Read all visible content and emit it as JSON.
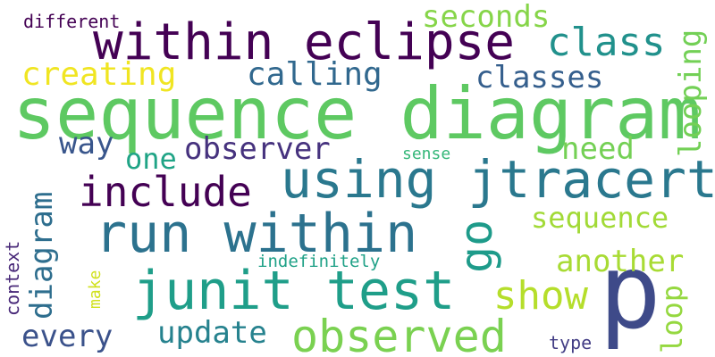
{
  "words": [
    {
      "text": "sequence diagram",
      "color": "#5ec962"
    },
    {
      "text": "within eclipse",
      "color": "#440154"
    },
    {
      "text": "using jtracert",
      "color": "#2a788e"
    },
    {
      "text": "run within",
      "color": "#2c728e"
    },
    {
      "text": "junit test",
      "color": "#1f9e89"
    },
    {
      "text": "observed",
      "color": "#7ad151"
    },
    {
      "text": "p",
      "color": "#3e4a89"
    },
    {
      "text": "include",
      "color": "#440154"
    },
    {
      "text": "show",
      "color": "#b5de2b"
    },
    {
      "text": "class",
      "color": "#21918c"
    },
    {
      "text": "seconds",
      "color": "#86d549"
    },
    {
      "text": "creating",
      "color": "#f0e522"
    },
    {
      "text": "calling",
      "color": "#31688e"
    },
    {
      "text": "classes",
      "color": "#355f8d"
    },
    {
      "text": "observer",
      "color": "#46327e"
    },
    {
      "text": "way",
      "color": "#39568c"
    },
    {
      "text": "one",
      "color": "#20a486"
    },
    {
      "text": "need",
      "color": "#74d055"
    },
    {
      "text": "sequence",
      "color": "#a2da37"
    },
    {
      "text": "another",
      "color": "#a8db34"
    },
    {
      "text": "every",
      "color": "#3b528b"
    },
    {
      "text": "update",
      "color": "#26828e"
    },
    {
      "text": "go",
      "color": "#1e9b8a"
    },
    {
      "text": "looping",
      "color": "#73d056"
    },
    {
      "text": "loop",
      "color": "#95d840"
    },
    {
      "text": "diagram",
      "color": "#2e6e8e"
    },
    {
      "text": "different",
      "color": "#440154"
    },
    {
      "text": "sense",
      "color": "#35b779"
    },
    {
      "text": "indefinitely",
      "color": "#1fa187"
    },
    {
      "text": "context",
      "color": "#482878"
    },
    {
      "text": "make",
      "color": "#d0e11c"
    },
    {
      "text": "type",
      "color": "#433e85"
    }
  ]
}
